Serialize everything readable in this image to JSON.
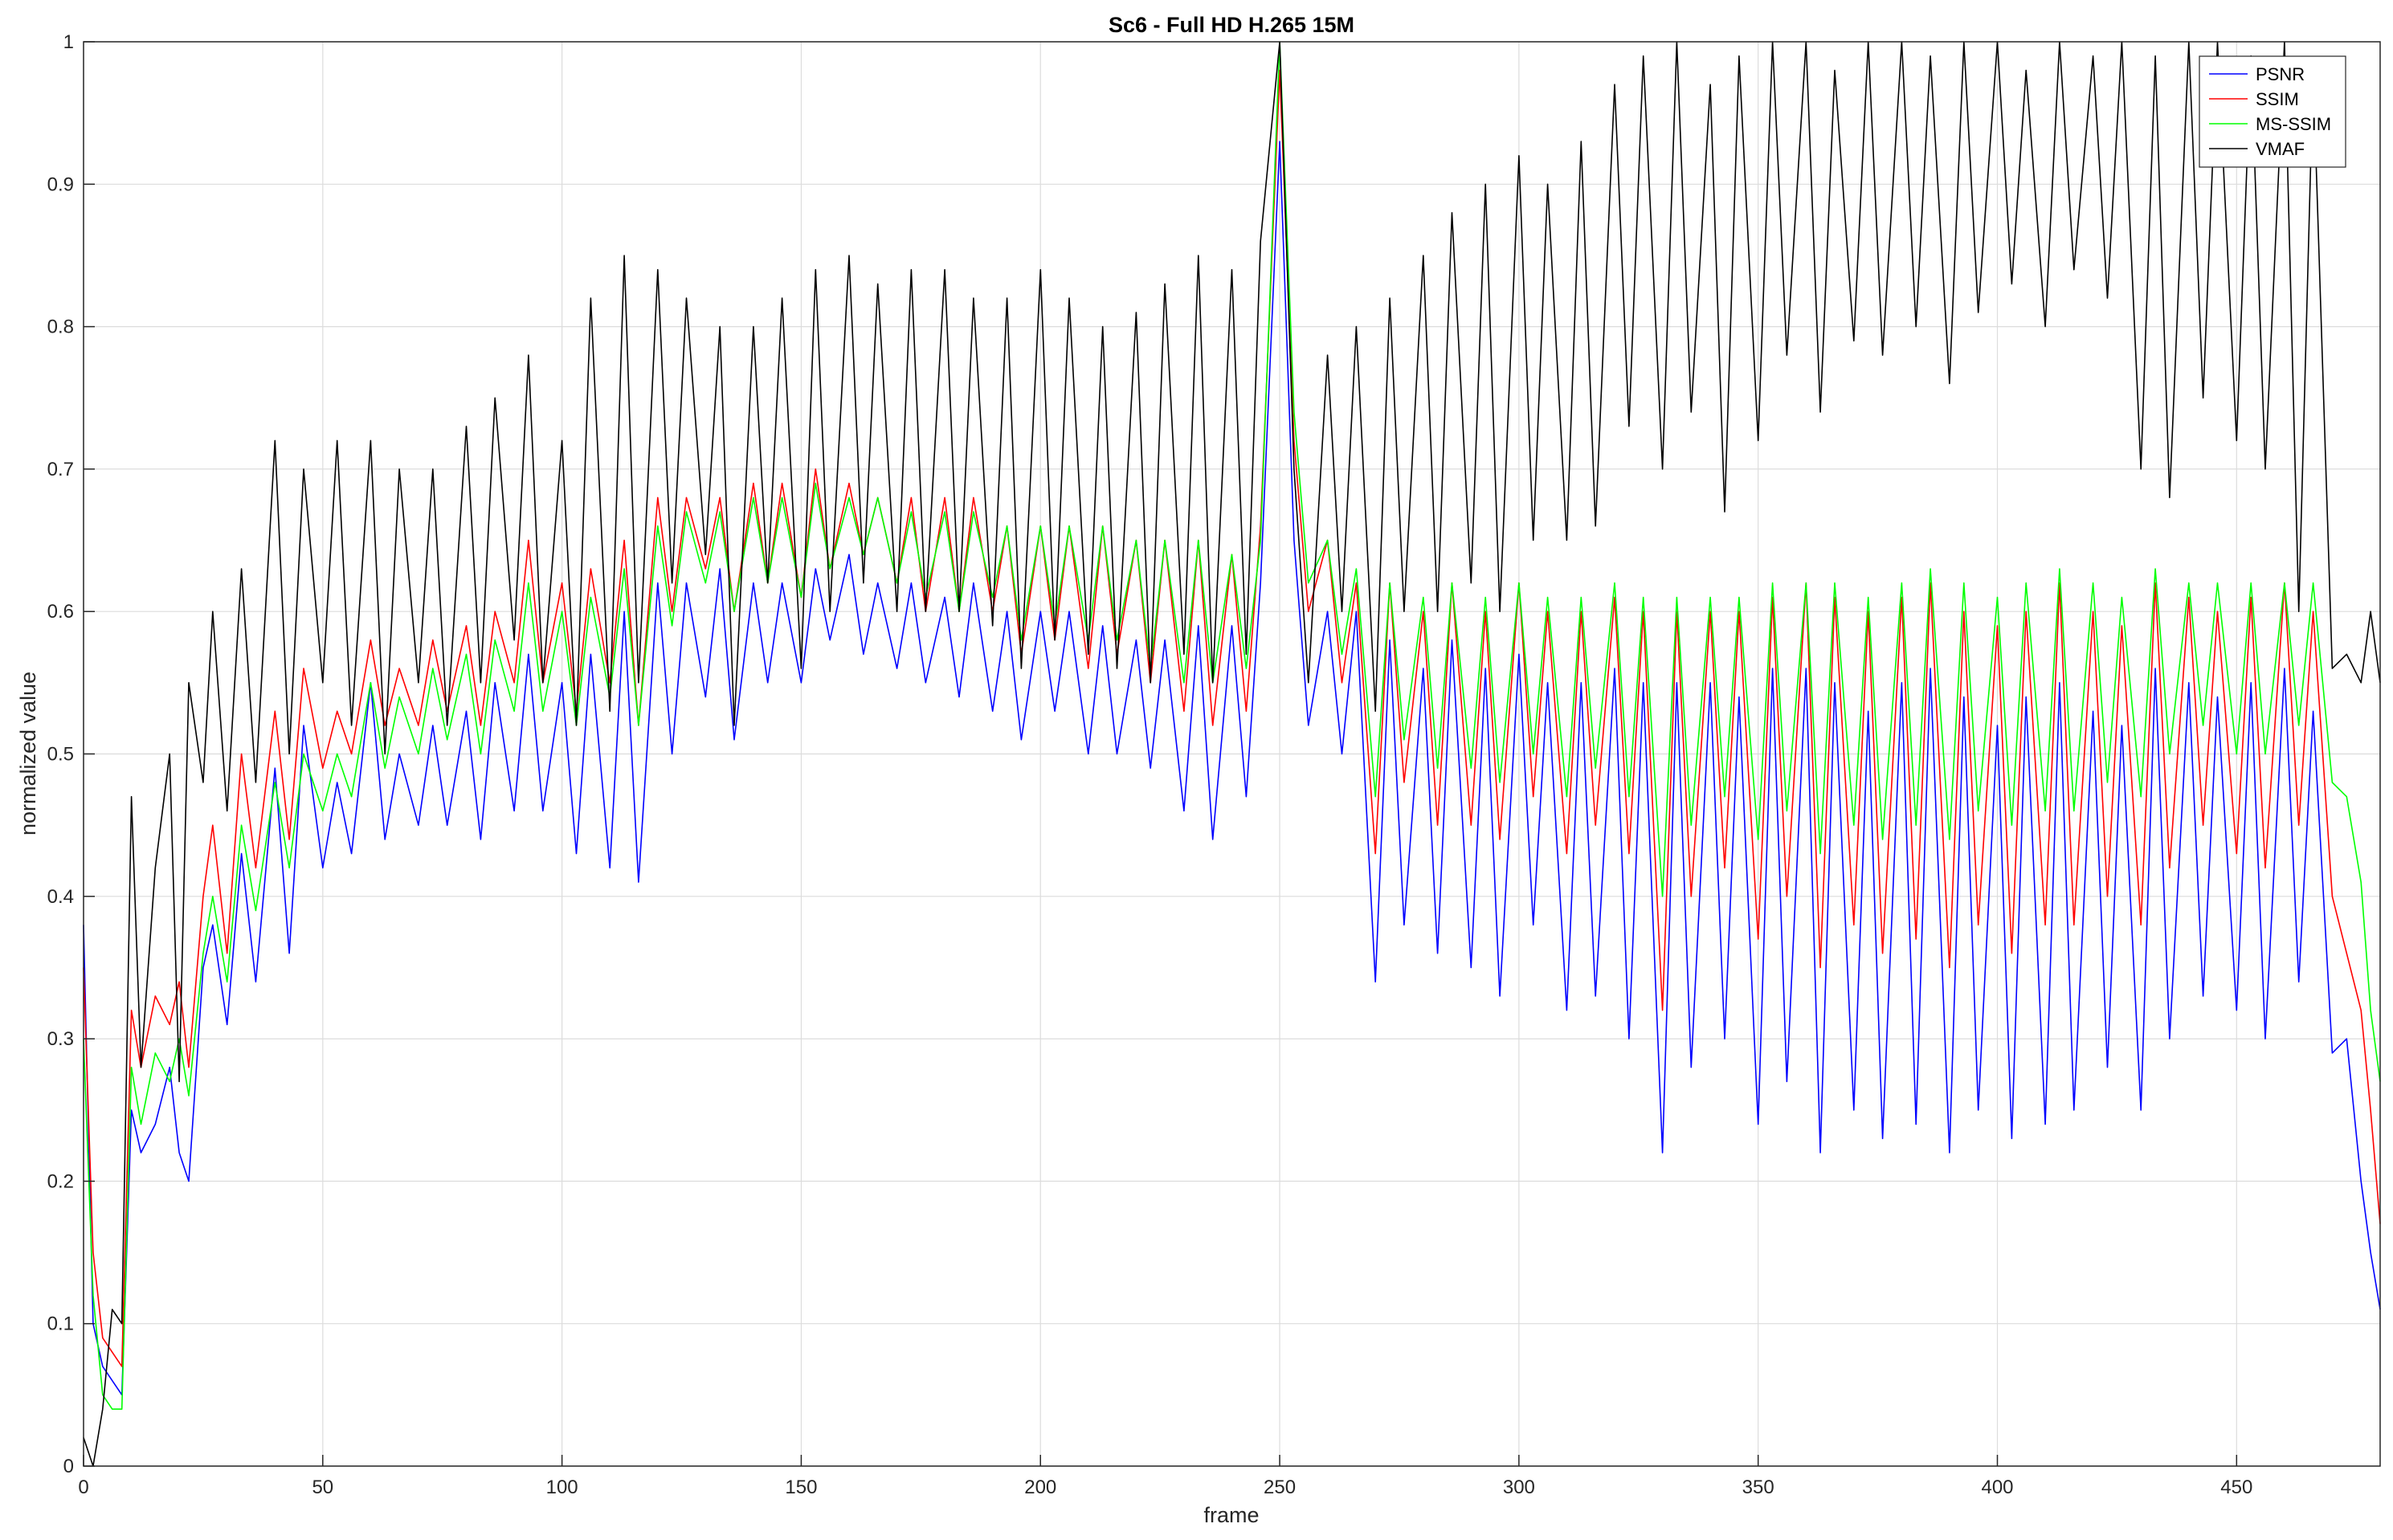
{
  "chart_data": {
    "type": "line",
    "title": "Sc6 - Full HD H.265 15M",
    "xlabel": "frame",
    "ylabel": "normalized value",
    "xlim": [
      0,
      480
    ],
    "ylim": [
      0,
      1
    ],
    "xticks": [
      0,
      50,
      100,
      150,
      200,
      250,
      300,
      350,
      400,
      450
    ],
    "yticks": [
      0,
      0.1,
      0.2,
      0.3,
      0.4,
      0.5,
      0.6,
      0.7,
      0.8,
      0.9,
      1
    ],
    "grid": true,
    "legend_position": "top-right",
    "series": [
      {
        "name": "PSNR",
        "color": "#0000ff",
        "x": [
          0,
          2,
          4,
          6,
          8,
          10,
          12,
          15,
          18,
          20,
          22,
          25,
          27,
          30,
          33,
          36,
          40,
          43,
          46,
          50,
          53,
          56,
          60,
          63,
          66,
          70,
          73,
          76,
          80,
          83,
          86,
          90,
          93,
          96,
          100,
          103,
          106,
          110,
          113,
          116,
          120,
          123,
          126,
          130,
          133,
          136,
          140,
          143,
          146,
          150,
          153,
          156,
          160,
          163,
          166,
          170,
          173,
          176,
          180,
          183,
          186,
          190,
          193,
          196,
          200,
          203,
          206,
          210,
          213,
          216,
          220,
          223,
          226,
          230,
          233,
          236,
          240,
          243,
          246,
          250,
          253,
          256,
          260,
          263,
          266,
          270,
          273,
          276,
          280,
          283,
          286,
          290,
          293,
          296,
          300,
          303,
          306,
          310,
          313,
          316,
          320,
          323,
          326,
          330,
          333,
          336,
          340,
          343,
          346,
          350,
          353,
          356,
          360,
          363,
          366,
          370,
          373,
          376,
          380,
          383,
          386,
          390,
          393,
          396,
          400,
          403,
          406,
          410,
          413,
          416,
          420,
          423,
          426,
          430,
          433,
          436,
          440,
          443,
          446,
          450,
          453,
          456,
          460,
          463,
          466,
          470,
          473,
          476,
          478,
          480
        ],
        "values": [
          0.38,
          0.1,
          0.07,
          0.06,
          0.05,
          0.25,
          0.22,
          0.24,
          0.28,
          0.22,
          0.2,
          0.35,
          0.38,
          0.31,
          0.43,
          0.34,
          0.49,
          0.36,
          0.52,
          0.42,
          0.48,
          0.43,
          0.55,
          0.44,
          0.5,
          0.45,
          0.52,
          0.45,
          0.53,
          0.44,
          0.55,
          0.46,
          0.57,
          0.46,
          0.55,
          0.43,
          0.57,
          0.42,
          0.6,
          0.41,
          0.62,
          0.5,
          0.62,
          0.54,
          0.63,
          0.51,
          0.62,
          0.55,
          0.62,
          0.55,
          0.63,
          0.58,
          0.64,
          0.57,
          0.62,
          0.56,
          0.62,
          0.55,
          0.61,
          0.54,
          0.62,
          0.53,
          0.6,
          0.51,
          0.6,
          0.53,
          0.6,
          0.5,
          0.59,
          0.5,
          0.58,
          0.49,
          0.58,
          0.46,
          0.59,
          0.44,
          0.59,
          0.47,
          0.62,
          0.93,
          0.65,
          0.52,
          0.6,
          0.5,
          0.6,
          0.34,
          0.58,
          0.38,
          0.56,
          0.36,
          0.58,
          0.35,
          0.56,
          0.33,
          0.57,
          0.38,
          0.55,
          0.32,
          0.55,
          0.33,
          0.56,
          0.3,
          0.55,
          0.22,
          0.55,
          0.28,
          0.55,
          0.3,
          0.54,
          0.24,
          0.56,
          0.27,
          0.56,
          0.22,
          0.55,
          0.25,
          0.53,
          0.23,
          0.55,
          0.24,
          0.56,
          0.22,
          0.54,
          0.25,
          0.52,
          0.23,
          0.54,
          0.24,
          0.55,
          0.25,
          0.53,
          0.28,
          0.52,
          0.25,
          0.56,
          0.3,
          0.55,
          0.33,
          0.54,
          0.32,
          0.55,
          0.3,
          0.56,
          0.34,
          0.53,
          0.29,
          0.3,
          0.2,
          0.15,
          0.11
        ]
      },
      {
        "name": "SSIM",
        "color": "#ff0000",
        "x": [
          0,
          2,
          4,
          6,
          8,
          10,
          12,
          15,
          18,
          20,
          22,
          25,
          27,
          30,
          33,
          36,
          40,
          43,
          46,
          50,
          53,
          56,
          60,
          63,
          66,
          70,
          73,
          76,
          80,
          83,
          86,
          90,
          93,
          96,
          100,
          103,
          106,
          110,
          113,
          116,
          120,
          123,
          126,
          130,
          133,
          136,
          140,
          143,
          146,
          150,
          153,
          156,
          160,
          163,
          166,
          170,
          173,
          176,
          180,
          183,
          186,
          190,
          193,
          196,
          200,
          203,
          206,
          210,
          213,
          216,
          220,
          223,
          226,
          230,
          233,
          236,
          240,
          243,
          246,
          250,
          253,
          256,
          260,
          263,
          266,
          270,
          273,
          276,
          280,
          283,
          286,
          290,
          293,
          296,
          300,
          303,
          306,
          310,
          313,
          316,
          320,
          323,
          326,
          330,
          333,
          336,
          340,
          343,
          346,
          350,
          353,
          356,
          360,
          363,
          366,
          370,
          373,
          376,
          380,
          383,
          386,
          390,
          393,
          396,
          400,
          403,
          406,
          410,
          413,
          416,
          420,
          423,
          426,
          430,
          433,
          436,
          440,
          443,
          446,
          450,
          453,
          456,
          460,
          463,
          466,
          470,
          473,
          476,
          478,
          480
        ],
        "values": [
          0.35,
          0.15,
          0.09,
          0.08,
          0.07,
          0.32,
          0.28,
          0.33,
          0.31,
          0.34,
          0.28,
          0.4,
          0.45,
          0.36,
          0.5,
          0.42,
          0.53,
          0.44,
          0.56,
          0.49,
          0.53,
          0.5,
          0.58,
          0.52,
          0.56,
          0.52,
          0.58,
          0.53,
          0.59,
          0.52,
          0.6,
          0.55,
          0.65,
          0.55,
          0.62,
          0.53,
          0.63,
          0.55,
          0.65,
          0.52,
          0.68,
          0.6,
          0.68,
          0.63,
          0.68,
          0.6,
          0.69,
          0.62,
          0.69,
          0.61,
          0.7,
          0.63,
          0.69,
          0.64,
          0.68,
          0.62,
          0.68,
          0.6,
          0.68,
          0.6,
          0.68,
          0.6,
          0.66,
          0.57,
          0.66,
          0.58,
          0.66,
          0.56,
          0.66,
          0.57,
          0.65,
          0.55,
          0.65,
          0.53,
          0.65,
          0.52,
          0.64,
          0.53,
          0.66,
          0.98,
          0.72,
          0.6,
          0.65,
          0.55,
          0.62,
          0.43,
          0.62,
          0.48,
          0.6,
          0.45,
          0.62,
          0.45,
          0.6,
          0.44,
          0.62,
          0.47,
          0.6,
          0.43,
          0.6,
          0.45,
          0.61,
          0.43,
          0.6,
          0.32,
          0.6,
          0.4,
          0.6,
          0.42,
          0.6,
          0.37,
          0.61,
          0.4,
          0.62,
          0.35,
          0.61,
          0.38,
          0.6,
          0.36,
          0.61,
          0.37,
          0.62,
          0.35,
          0.6,
          0.38,
          0.59,
          0.36,
          0.6,
          0.38,
          0.62,
          0.38,
          0.6,
          0.4,
          0.59,
          0.38,
          0.62,
          0.42,
          0.61,
          0.45,
          0.6,
          0.43,
          0.61,
          0.42,
          0.62,
          0.45,
          0.6,
          0.4,
          0.36,
          0.32,
          0.25,
          0.17
        ]
      },
      {
        "name": "MS-SSIM",
        "color": "#00ff00",
        "x": [
          0,
          2,
          4,
          6,
          8,
          10,
          12,
          15,
          18,
          20,
          22,
          25,
          27,
          30,
          33,
          36,
          40,
          43,
          46,
          50,
          53,
          56,
          60,
          63,
          66,
          70,
          73,
          76,
          80,
          83,
          86,
          90,
          93,
          96,
          100,
          103,
          106,
          110,
          113,
          116,
          120,
          123,
          126,
          130,
          133,
          136,
          140,
          143,
          146,
          150,
          153,
          156,
          160,
          163,
          166,
          170,
          173,
          176,
          180,
          183,
          186,
          190,
          193,
          196,
          200,
          203,
          206,
          210,
          213,
          216,
          220,
          223,
          226,
          230,
          233,
          236,
          240,
          243,
          246,
          250,
          253,
          256,
          260,
          263,
          266,
          270,
          273,
          276,
          280,
          283,
          286,
          290,
          293,
          296,
          300,
          303,
          306,
          310,
          313,
          316,
          320,
          323,
          326,
          330,
          333,
          336,
          340,
          343,
          346,
          350,
          353,
          356,
          360,
          363,
          366,
          370,
          373,
          376,
          380,
          383,
          386,
          390,
          393,
          396,
          400,
          403,
          406,
          410,
          413,
          416,
          420,
          423,
          426,
          430,
          433,
          436,
          440,
          443,
          446,
          450,
          453,
          456,
          460,
          463,
          466,
          470,
          473,
          476,
          478,
          480
        ],
        "values": [
          0.3,
          0.12,
          0.05,
          0.04,
          0.04,
          0.28,
          0.24,
          0.29,
          0.27,
          0.3,
          0.26,
          0.36,
          0.4,
          0.34,
          0.45,
          0.39,
          0.48,
          0.42,
          0.5,
          0.46,
          0.5,
          0.47,
          0.55,
          0.49,
          0.54,
          0.5,
          0.56,
          0.51,
          0.57,
          0.5,
          0.58,
          0.53,
          0.62,
          0.53,
          0.6,
          0.52,
          0.61,
          0.54,
          0.63,
          0.52,
          0.66,
          0.59,
          0.67,
          0.62,
          0.67,
          0.6,
          0.68,
          0.62,
          0.68,
          0.61,
          0.69,
          0.63,
          0.68,
          0.64,
          0.68,
          0.62,
          0.67,
          0.61,
          0.67,
          0.6,
          0.67,
          0.61,
          0.66,
          0.58,
          0.66,
          0.59,
          0.66,
          0.58,
          0.66,
          0.58,
          0.65,
          0.56,
          0.65,
          0.55,
          0.65,
          0.55,
          0.64,
          0.56,
          0.65,
          1.0,
          0.74,
          0.62,
          0.65,
          0.57,
          0.63,
          0.47,
          0.62,
          0.51,
          0.61,
          0.49,
          0.62,
          0.49,
          0.61,
          0.48,
          0.62,
          0.5,
          0.61,
          0.47,
          0.61,
          0.49,
          0.62,
          0.47,
          0.61,
          0.4,
          0.61,
          0.45,
          0.61,
          0.47,
          0.61,
          0.44,
          0.62,
          0.46,
          0.62,
          0.43,
          0.62,
          0.45,
          0.61,
          0.44,
          0.62,
          0.45,
          0.63,
          0.44,
          0.62,
          0.46,
          0.61,
          0.45,
          0.62,
          0.46,
          0.63,
          0.46,
          0.62,
          0.48,
          0.61,
          0.47,
          0.63,
          0.5,
          0.62,
          0.52,
          0.62,
          0.5,
          0.62,
          0.5,
          0.62,
          0.52,
          0.62,
          0.48,
          0.47,
          0.41,
          0.32,
          0.27
        ]
      },
      {
        "name": "VMAF",
        "color": "#000000",
        "x": [
          0,
          2,
          4,
          6,
          8,
          10,
          12,
          15,
          18,
          20,
          22,
          25,
          27,
          30,
          33,
          36,
          40,
          43,
          46,
          50,
          53,
          56,
          60,
          63,
          66,
          70,
          73,
          76,
          80,
          83,
          86,
          90,
          93,
          96,
          100,
          103,
          106,
          110,
          113,
          116,
          120,
          123,
          126,
          130,
          133,
          136,
          140,
          143,
          146,
          150,
          153,
          156,
          160,
          163,
          166,
          170,
          173,
          176,
          180,
          183,
          186,
          190,
          193,
          196,
          200,
          203,
          206,
          210,
          213,
          216,
          220,
          223,
          226,
          230,
          233,
          236,
          240,
          243,
          246,
          250,
          253,
          256,
          260,
          263,
          266,
          270,
          273,
          276,
          280,
          283,
          286,
          290,
          293,
          296,
          300,
          303,
          306,
          310,
          313,
          316,
          320,
          323,
          326,
          330,
          333,
          336,
          340,
          343,
          346,
          350,
          353,
          356,
          360,
          363,
          366,
          370,
          373,
          376,
          380,
          383,
          386,
          390,
          393,
          396,
          400,
          403,
          406,
          410,
          413,
          416,
          420,
          423,
          426,
          430,
          433,
          436,
          440,
          443,
          446,
          450,
          453,
          456,
          460,
          463,
          466,
          470,
          473,
          476,
          478,
          480
        ],
        "values": [
          0.02,
          0.0,
          0.04,
          0.11,
          0.1,
          0.47,
          0.28,
          0.42,
          0.5,
          0.27,
          0.55,
          0.48,
          0.6,
          0.46,
          0.63,
          0.48,
          0.72,
          0.5,
          0.7,
          0.55,
          0.72,
          0.52,
          0.72,
          0.5,
          0.7,
          0.55,
          0.7,
          0.52,
          0.73,
          0.55,
          0.75,
          0.58,
          0.78,
          0.55,
          0.72,
          0.52,
          0.82,
          0.53,
          0.85,
          0.55,
          0.84,
          0.62,
          0.82,
          0.64,
          0.8,
          0.52,
          0.8,
          0.62,
          0.82,
          0.56,
          0.84,
          0.6,
          0.85,
          0.62,
          0.83,
          0.6,
          0.84,
          0.6,
          0.84,
          0.6,
          0.82,
          0.59,
          0.82,
          0.56,
          0.84,
          0.58,
          0.82,
          0.57,
          0.8,
          0.56,
          0.81,
          0.55,
          0.83,
          0.57,
          0.85,
          0.55,
          0.84,
          0.57,
          0.86,
          1.0,
          0.7,
          0.55,
          0.78,
          0.6,
          0.8,
          0.53,
          0.82,
          0.6,
          0.85,
          0.6,
          0.88,
          0.62,
          0.9,
          0.6,
          0.92,
          0.65,
          0.9,
          0.65,
          0.93,
          0.66,
          0.97,
          0.73,
          0.99,
          0.7,
          1.0,
          0.74,
          0.97,
          0.67,
          0.99,
          0.72,
          1.0,
          0.78,
          1.0,
          0.74,
          0.98,
          0.79,
          1.0,
          0.78,
          1.0,
          0.8,
          0.99,
          0.76,
          1.0,
          0.81,
          1.0,
          0.83,
          0.98,
          0.8,
          1.0,
          0.84,
          0.99,
          0.82,
          1.0,
          0.7,
          0.99,
          0.68,
          1.0,
          0.75,
          1.0,
          0.72,
          0.99,
          0.7,
          1.0,
          0.6,
          0.98,
          0.56,
          0.57,
          0.55,
          0.6,
          0.55
        ]
      }
    ]
  }
}
